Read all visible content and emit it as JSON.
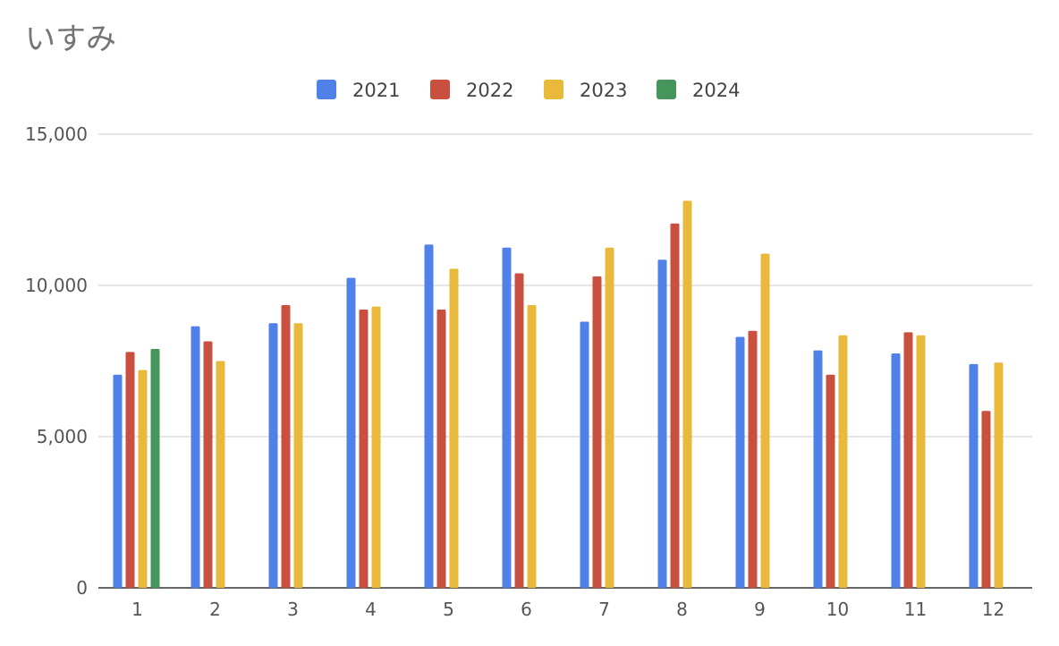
{
  "chart_data": {
    "type": "bar",
    "title": "いすみ",
    "xlabel": "",
    "ylabel": "",
    "categories": [
      "1",
      "2",
      "3",
      "4",
      "5",
      "6",
      "7",
      "8",
      "9",
      "10",
      "11",
      "12"
    ],
    "ylim": [
      0,
      15000
    ],
    "yticks": [
      0,
      5000,
      10000,
      15000
    ],
    "ytick_labels": [
      "0",
      "5,000",
      "10,000",
      "15,000"
    ],
    "grid": true,
    "legend_position": "top-center",
    "series": [
      {
        "name": "2021",
        "color": "#4f81e8",
        "values": [
          7050,
          8650,
          8750,
          10250,
          11350,
          11250,
          8800,
          10850,
          8300,
          7850,
          7750,
          7400
        ]
      },
      {
        "name": "2022",
        "color": "#c9503f",
        "values": [
          7800,
          8150,
          9350,
          9200,
          9200,
          10400,
          10300,
          12050,
          8500,
          7050,
          8450,
          5850
        ]
      },
      {
        "name": "2023",
        "color": "#e8b93a",
        "values": [
          7200,
          7500,
          8750,
          9300,
          10550,
          9350,
          11250,
          12800,
          11050,
          8350,
          8350,
          7450
        ]
      },
      {
        "name": "2024",
        "color": "#46955a",
        "values": [
          7900,
          null,
          null,
          null,
          null,
          null,
          null,
          null,
          null,
          null,
          null,
          null
        ]
      }
    ]
  }
}
